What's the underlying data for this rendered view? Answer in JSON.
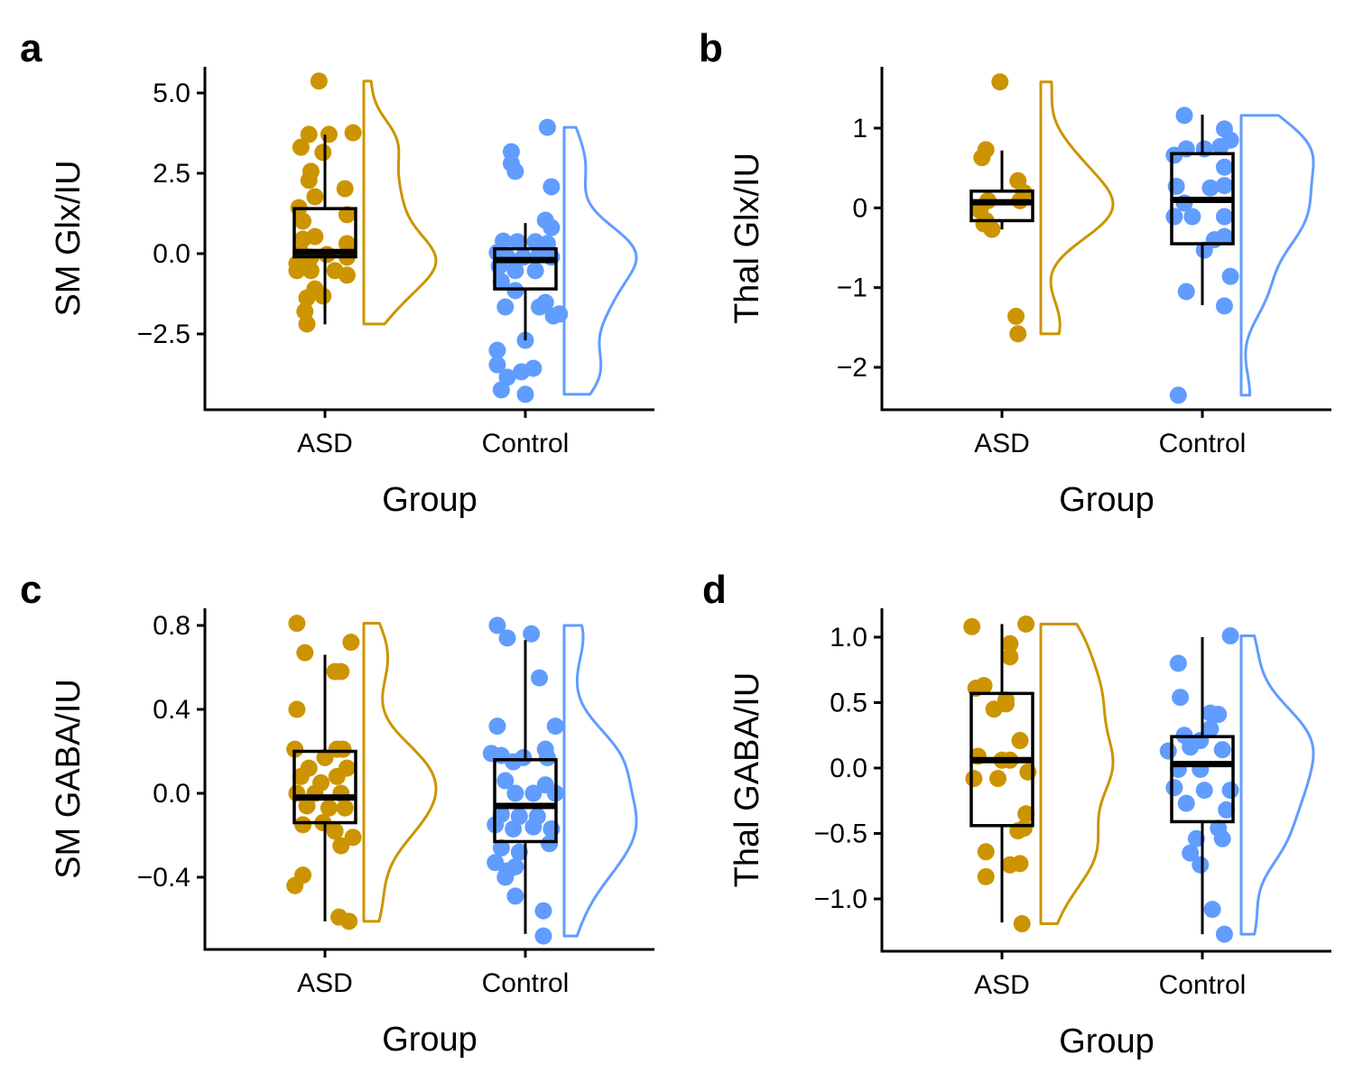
{
  "colors": {
    "ASD": "#CC9400",
    "Control": "#619CFF",
    "box": "#000000",
    "axis": "#000000"
  },
  "chart_data": [
    {
      "panel": "a",
      "type": "raincloud",
      "xlabel": "Group",
      "ylabel": "SM Glx/IU",
      "categories": [
        "ASD",
        "Control"
      ],
      "yticks": [
        5.0,
        2.5,
        0.0,
        -2.5
      ],
      "ytick_labels": [
        "5.0",
        "2.5",
        "0.0",
        "−2.5"
      ],
      "ylim": [
        -5.1,
        5.8
      ],
      "groups": [
        {
          "name": "ASD",
          "box": {
            "min": -2.2,
            "q1": -0.1,
            "median": 0.05,
            "q3": 1.4,
            "max": 3.7
          },
          "points": [
            [
              -0.03,
              5.37
            ],
            [
              -0.08,
              3.71
            ],
            [
              0.02,
              3.71
            ],
            [
              0.14,
              3.76
            ],
            [
              -0.12,
              3.31
            ],
            [
              -0.01,
              3.15
            ],
            [
              -0.07,
              2.56
            ],
            [
              -0.08,
              2.28
            ],
            [
              0.1,
              2.02
            ],
            [
              -0.05,
              1.77
            ],
            [
              -0.13,
              1.43
            ],
            [
              -0.11,
              1.01
            ],
            [
              0.11,
              1.21
            ],
            [
              -0.05,
              0.53
            ],
            [
              -0.11,
              0.45
            ],
            [
              0.11,
              0.31
            ],
            [
              -0.12,
              0.03
            ],
            [
              -0.07,
              -0.11
            ],
            [
              0.01,
              -0.03
            ],
            [
              -0.14,
              -0.31
            ],
            [
              0.11,
              -0.11
            ],
            [
              -0.14,
              -0.53
            ],
            [
              -0.07,
              -0.53
            ],
            [
              0.05,
              -0.53
            ],
            [
              0.11,
              -0.67
            ],
            [
              -0.05,
              -1.1
            ],
            [
              -0.09,
              -1.38
            ],
            [
              -0.01,
              -1.32
            ],
            [
              -0.1,
              -1.8
            ],
            [
              -0.09,
              -2.19
            ]
          ]
        },
        {
          "name": "Control",
          "box": {
            "min": -2.7,
            "q1": -1.1,
            "median": -0.2,
            "q3": 0.15,
            "max": 0.95
          },
          "points": [
            [
              0.11,
              3.93
            ],
            [
              -0.07,
              3.17
            ],
            [
              -0.07,
              2.81
            ],
            [
              -0.05,
              2.56
            ],
            [
              0.13,
              2.08
            ],
            [
              0.1,
              1.04
            ],
            [
              0.13,
              0.81
            ],
            [
              -0.11,
              0.39
            ],
            [
              -0.04,
              0.37
            ],
            [
              0.05,
              0.37
            ],
            [
              0.11,
              0.31
            ],
            [
              -0.14,
              0.03
            ],
            [
              -0.09,
              -0.11
            ],
            [
              -0.01,
              -0.11
            ],
            [
              0.07,
              -0.03
            ],
            [
              0.13,
              -0.11
            ],
            [
              -0.13,
              -0.39
            ],
            [
              -0.05,
              -0.53
            ],
            [
              0.05,
              -0.53
            ],
            [
              -0.12,
              -0.87
            ],
            [
              -0.05,
              -1.15
            ],
            [
              0.1,
              -1.52
            ],
            [
              -0.1,
              -1.66
            ],
            [
              0.07,
              -1.66
            ],
            [
              0.14,
              -1.94
            ],
            [
              0.17,
              -1.88
            ],
            [
              0.0,
              -2.7
            ],
            [
              -0.14,
              -3.01
            ],
            [
              -0.14,
              -3.46
            ],
            [
              -0.02,
              -3.68
            ],
            [
              0.04,
              -3.57
            ],
            [
              -0.09,
              -3.85
            ],
            [
              -0.12,
              -4.24
            ],
            [
              0.0,
              -4.38
            ]
          ]
        }
      ]
    },
    {
      "panel": "b",
      "type": "raincloud",
      "xlabel": "Group",
      "ylabel": "Thal Glx/IU",
      "categories": [
        "ASD",
        "Control"
      ],
      "yticks": [
        1,
        0,
        -1,
        -2
      ],
      "ytick_labels": [
        "1",
        "0",
        "−1",
        "−2"
      ],
      "ylim": [
        -2.54,
        1.78
      ],
      "groups": [
        {
          "name": "ASD",
          "box": {
            "min": -0.27,
            "q1": -0.16,
            "median": 0.07,
            "q3": 0.21,
            "max": 0.72
          },
          "points": [
            [
              -0.01,
              1.58
            ],
            [
              -0.08,
              0.73
            ],
            [
              -0.1,
              0.63
            ],
            [
              0.08,
              0.34
            ],
            [
              0.11,
              0.19
            ],
            [
              -0.11,
              -0.03
            ],
            [
              -0.07,
              0.09
            ],
            [
              0.09,
              0.09
            ],
            [
              -0.09,
              -0.2
            ],
            [
              -0.05,
              -0.27
            ],
            [
              -0.08,
              -0.16
            ],
            [
              0.07,
              -1.36
            ],
            [
              0.08,
              -1.58
            ]
          ]
        },
        {
          "name": "Control",
          "box": {
            "min": -1.22,
            "q1": -0.45,
            "median": 0.1,
            "q3": 0.68,
            "max": 1.17
          },
          "points": [
            [
              -0.09,
              1.16
            ],
            [
              0.11,
              0.99
            ],
            [
              0.09,
              0.77
            ],
            [
              0.01,
              0.74
            ],
            [
              -0.08,
              0.74
            ],
            [
              0.14,
              0.85
            ],
            [
              -0.14,
              0.66
            ],
            [
              0.11,
              0.51
            ],
            [
              -0.13,
              0.27
            ],
            [
              0.04,
              0.25
            ],
            [
              0.11,
              0.28
            ],
            [
              -0.09,
              0.06
            ],
            [
              -0.05,
              -0.11
            ],
            [
              -0.14,
              -0.11
            ],
            [
              0.11,
              -0.11
            ],
            [
              0.06,
              -0.4
            ],
            [
              0.11,
              -0.36
            ],
            [
              0.01,
              -0.53
            ],
            [
              0.14,
              -0.86
            ],
            [
              -0.08,
              -1.05
            ],
            [
              0.11,
              -1.23
            ],
            [
              -0.12,
              -2.35
            ]
          ]
        }
      ]
    },
    {
      "panel": "c",
      "type": "raincloud",
      "xlabel": "Group",
      "ylabel": "SM GABA/IU",
      "categories": [
        "ASD",
        "Control"
      ],
      "yticks": [
        0.8,
        0.4,
        0.0,
        -0.4
      ],
      "ytick_labels": [
        "0.8",
        "0.4",
        "0.0",
        "−0.4"
      ],
      "ylim": [
        -0.745,
        0.88
      ],
      "groups": [
        {
          "name": "ASD",
          "box": {
            "min": -0.61,
            "q1": -0.14,
            "median": -0.02,
            "q3": 0.2,
            "max": 0.66
          },
          "points": [
            [
              -0.14,
              0.81
            ],
            [
              -0.1,
              0.67
            ],
            [
              0.13,
              0.72
            ],
            [
              0.08,
              0.58
            ],
            [
              0.05,
              0.58
            ],
            [
              -0.14,
              0.4
            ],
            [
              0.06,
              0.21
            ],
            [
              0.09,
              0.21
            ],
            [
              -0.15,
              0.21
            ],
            [
              -0.08,
              0.12
            ],
            [
              0.0,
              0.17
            ],
            [
              0.11,
              0.12
            ],
            [
              -0.12,
              0.08
            ],
            [
              -0.02,
              0.05
            ],
            [
              0.06,
              0.08
            ],
            [
              -0.14,
              0.0
            ],
            [
              -0.05,
              0.0
            ],
            [
              0.08,
              0.0
            ],
            [
              -0.09,
              -0.06
            ],
            [
              0.02,
              -0.07
            ],
            [
              0.1,
              -0.07
            ],
            [
              -0.11,
              -0.15
            ],
            [
              -0.01,
              -0.14
            ],
            [
              0.05,
              -0.18
            ],
            [
              0.14,
              -0.21
            ],
            [
              0.08,
              -0.25
            ],
            [
              -0.11,
              -0.39
            ],
            [
              -0.15,
              -0.44
            ],
            [
              0.07,
              -0.59
            ],
            [
              0.12,
              -0.61
            ]
          ]
        },
        {
          "name": "Control",
          "box": {
            "min": -0.67,
            "q1": -0.23,
            "median": -0.06,
            "q3": 0.16,
            "max": 0.73
          },
          "points": [
            [
              -0.14,
              0.8
            ],
            [
              -0.09,
              0.74
            ],
            [
              0.03,
              0.76
            ],
            [
              0.07,
              0.55
            ],
            [
              -0.14,
              0.32
            ],
            [
              0.15,
              0.32
            ],
            [
              0.1,
              0.21
            ],
            [
              0.11,
              0.17
            ],
            [
              -0.12,
              0.18
            ],
            [
              -0.17,
              0.19
            ],
            [
              -0.06,
              0.15
            ],
            [
              -0.01,
              0.17
            ],
            [
              -0.1,
              0.06
            ],
            [
              0.1,
              0.04
            ],
            [
              0.15,
              0.0
            ],
            [
              -0.05,
              0.0
            ],
            [
              0.04,
              0.0
            ],
            [
              -0.12,
              -0.1
            ],
            [
              -0.03,
              -0.11
            ],
            [
              0.06,
              -0.11
            ],
            [
              -0.15,
              -0.15
            ],
            [
              -0.06,
              -0.17
            ],
            [
              0.04,
              -0.16
            ],
            [
              0.13,
              -0.17
            ],
            [
              -0.12,
              -0.26
            ],
            [
              -0.03,
              -0.28
            ],
            [
              0.12,
              -0.24
            ],
            [
              -0.15,
              -0.33
            ],
            [
              -0.09,
              -0.37
            ],
            [
              -0.05,
              -0.35
            ],
            [
              -0.1,
              -0.4
            ],
            [
              -0.05,
              -0.49
            ],
            [
              0.09,
              -0.56
            ],
            [
              0.09,
              -0.68
            ]
          ]
        }
      ]
    },
    {
      "panel": "d",
      "type": "raincloud",
      "xlabel": "Group",
      "ylabel": "Thal GABA/IU",
      "categories": [
        "ASD",
        "Control"
      ],
      "yticks": [
        1.0,
        0.5,
        0.0,
        -0.5,
        -1.0
      ],
      "ytick_labels": [
        "1.0",
        "0.5",
        "0.0",
        "−0.5",
        "−1.0"
      ],
      "ylim": [
        -1.4,
        1.22
      ],
      "groups": [
        {
          "name": "ASD",
          "box": {
            "min": -1.18,
            "q1": -0.44,
            "median": 0.06,
            "q3": 0.57,
            "max": 1.1
          },
          "points": [
            [
              -0.15,
              1.08
            ],
            [
              0.12,
              1.1
            ],
            [
              0.04,
              0.95
            ],
            [
              0.04,
              0.85
            ],
            [
              -0.13,
              0.61
            ],
            [
              -0.09,
              0.63
            ],
            [
              0.02,
              0.49
            ],
            [
              0.02,
              0.52
            ],
            [
              -0.04,
              0.45
            ],
            [
              0.09,
              0.21
            ],
            [
              -0.12,
              0.09
            ],
            [
              0.0,
              0.06
            ],
            [
              0.04,
              0.06
            ],
            [
              -0.14,
              -0.08
            ],
            [
              -0.02,
              -0.08
            ],
            [
              0.13,
              -0.03
            ],
            [
              0.12,
              -0.35
            ],
            [
              0.08,
              -0.48
            ],
            [
              0.11,
              -0.46
            ],
            [
              -0.08,
              -0.64
            ],
            [
              0.09,
              -0.73
            ],
            [
              0.04,
              -0.74
            ],
            [
              -0.08,
              -0.83
            ],
            [
              0.1,
              -1.19
            ]
          ]
        },
        {
          "name": "Control",
          "box": {
            "min": -1.27,
            "q1": -0.41,
            "median": 0.03,
            "q3": 0.24,
            "max": 1.0
          },
          "points": [
            [
              0.14,
              1.01
            ],
            [
              -0.12,
              0.8
            ],
            [
              -0.11,
              0.54
            ],
            [
              0.04,
              0.42
            ],
            [
              0.08,
              0.41
            ],
            [
              0.04,
              0.3
            ],
            [
              -0.09,
              0.25
            ],
            [
              -0.01,
              0.21
            ],
            [
              -0.17,
              0.13
            ],
            [
              -0.06,
              0.16
            ],
            [
              0.1,
              0.14
            ],
            [
              -0.12,
              -0.01
            ],
            [
              -0.01,
              -0.01
            ],
            [
              -0.14,
              -0.15
            ],
            [
              0.01,
              -0.17
            ],
            [
              0.14,
              -0.17
            ],
            [
              -0.08,
              -0.27
            ],
            [
              0.12,
              -0.32
            ],
            [
              0.08,
              -0.46
            ],
            [
              0.1,
              -0.54
            ],
            [
              -0.03,
              -0.54
            ],
            [
              -0.06,
              -0.65
            ],
            [
              -0.01,
              -0.74
            ],
            [
              0.05,
              -1.08
            ],
            [
              0.11,
              -1.27
            ]
          ]
        }
      ]
    }
  ]
}
